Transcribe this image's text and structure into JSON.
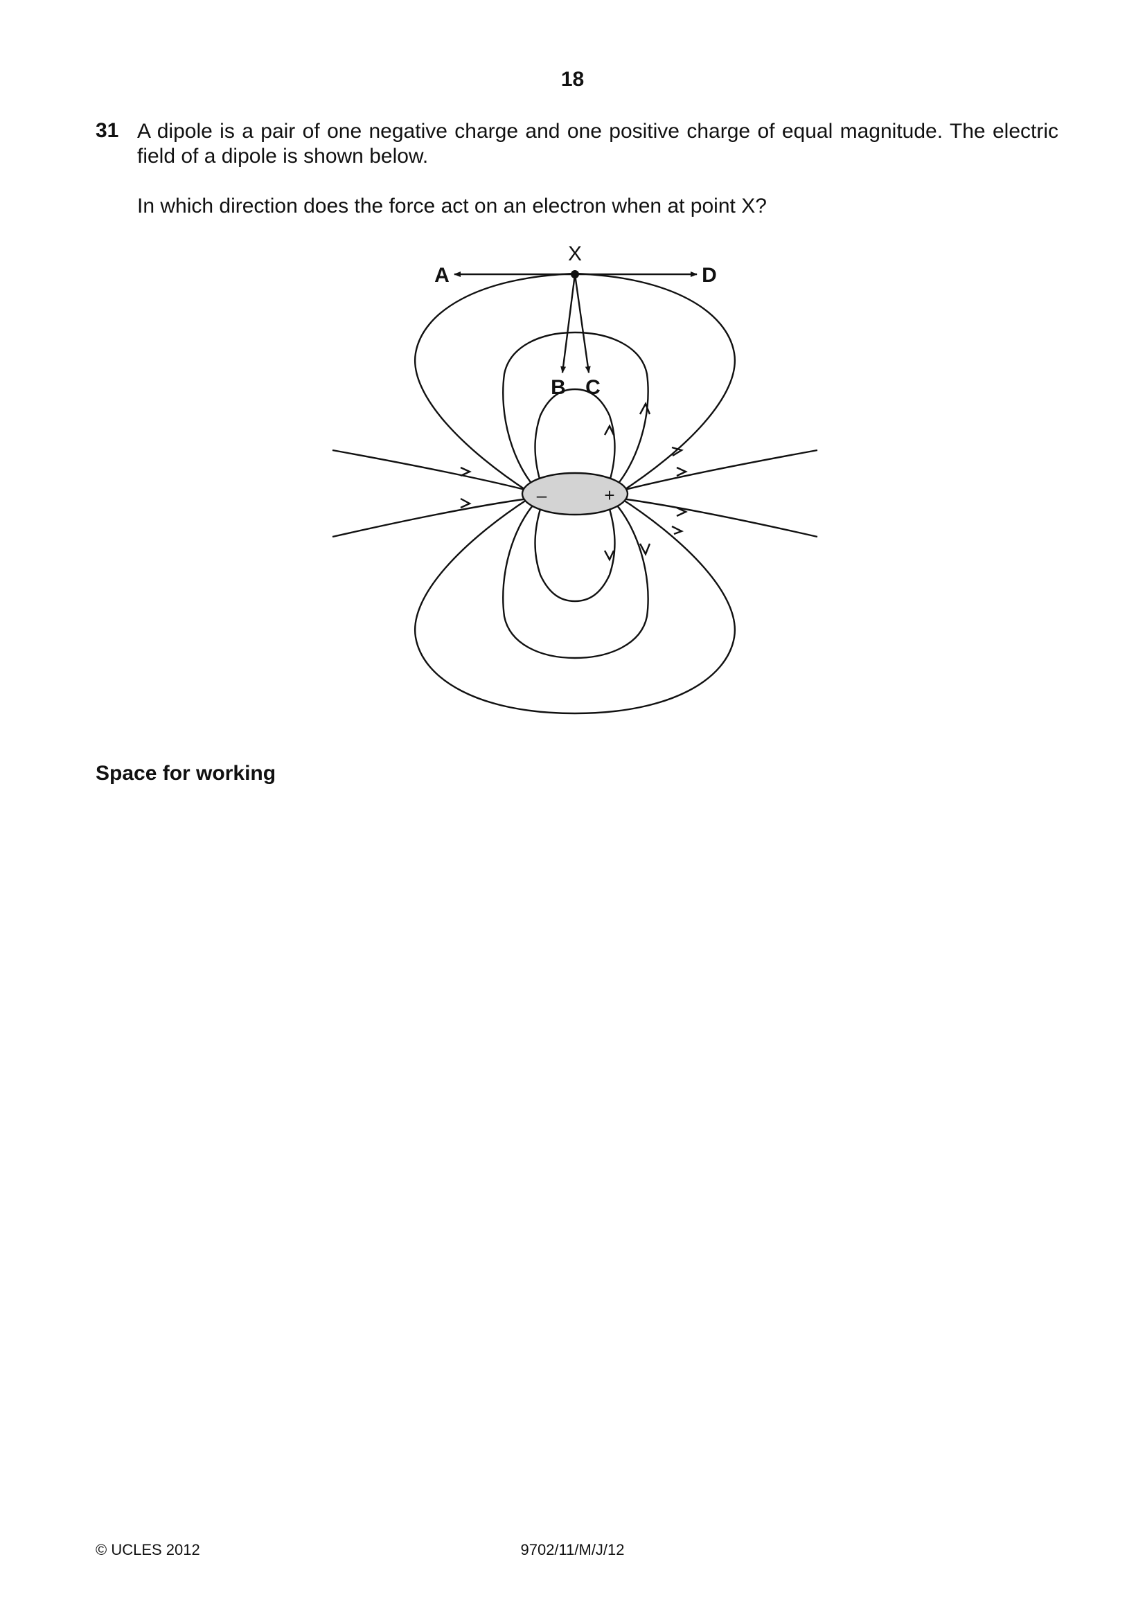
{
  "page_number": "18",
  "question": {
    "number": "31",
    "text": "A dipole is a pair of one negative charge and one positive charge of equal magnitude. The electric field of a dipole is shown below.",
    "prompt": "In which direction does the force act on an electron when at point X?"
  },
  "diagram": {
    "point_label": "X",
    "labels": {
      "a": "A",
      "b": "B",
      "c": "C",
      "d": "D"
    },
    "charge_signs": {
      "negative": "–",
      "positive": "+"
    },
    "fill_color": "#d3d3d3"
  },
  "working_label": "Space for working",
  "footer": {
    "copyright": "© UCLES 2012",
    "code": "9702/11/M/J/12"
  }
}
